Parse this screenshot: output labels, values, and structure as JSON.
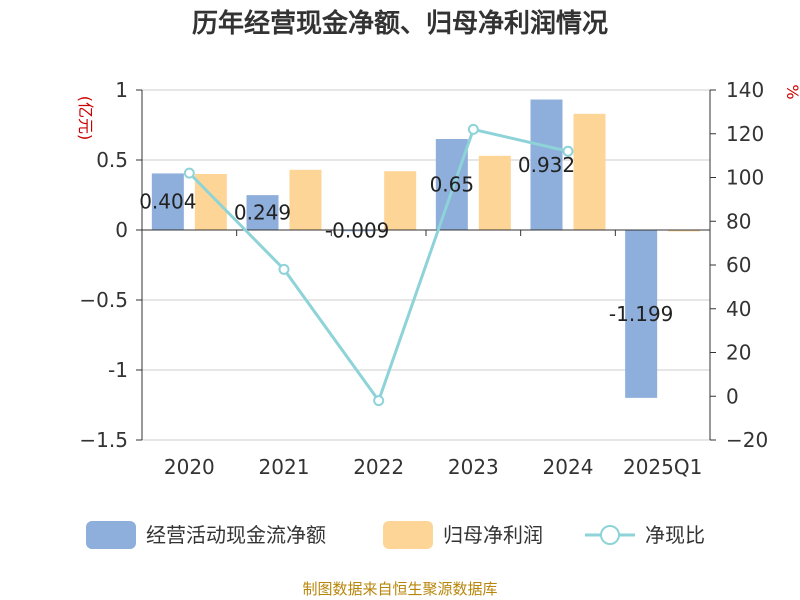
{
  "chart_data": {
    "type": "bar",
    "title": "历年经营现金净额、归母净利润情况",
    "categories": [
      "2020",
      "2021",
      "2022",
      "2023",
      "2024",
      "2025Q1"
    ],
    "series": [
      {
        "name": "经营活动现金流净额",
        "type": "bar",
        "axis": "left",
        "color": "#8eaedb",
        "values": [
          0.404,
          0.249,
          -0.009,
          0.65,
          0.932,
          -1.199
        ],
        "labels": [
          "0.404",
          "0.249",
          "-0.009",
          "0.65",
          "0.932",
          "-1.199"
        ]
      },
      {
        "name": "归母净利润",
        "type": "bar",
        "axis": "left",
        "color": "#fdd697",
        "values": [
          0.4,
          0.43,
          0.42,
          0.53,
          0.83,
          -0.01
        ]
      },
      {
        "name": "净现比",
        "type": "line",
        "axis": "right",
        "color": "#8dd3d8",
        "values": [
          102,
          58,
          -2,
          122,
          112,
          null
        ]
      }
    ],
    "left_axis": {
      "unit": "(亿元)",
      "ylim": [
        -1.5,
        1
      ],
      "ticks": [
        1,
        0.5,
        0,
        -0.5,
        -1,
        -1.5
      ],
      "tick_labels": [
        "1",
        "0.5",
        "0",
        "−0.5",
        "-1",
        "−1.5"
      ]
    },
    "right_axis": {
      "unit": "%",
      "ylim": [
        -20,
        140
      ],
      "ticks": [
        140,
        120,
        100,
        80,
        60,
        40,
        20,
        0,
        -20
      ],
      "tick_labels": [
        "140",
        "120",
        "100",
        "80",
        "60",
        "40",
        "20",
        "0",
        "−20"
      ]
    },
    "grid": true,
    "legend_position": "bottom"
  },
  "source": "制图数据来自恒生聚源数据库"
}
